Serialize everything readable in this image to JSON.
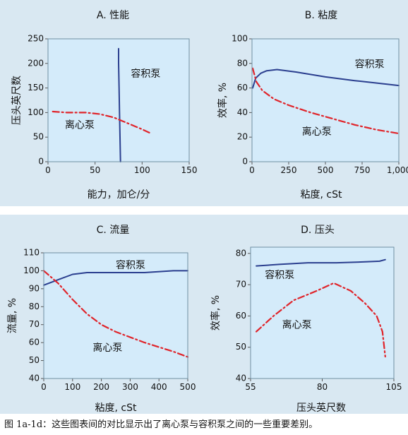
{
  "chart_data": [
    {
      "id": "A",
      "type": "line",
      "title": "A. 性能",
      "xlabel": "能力，加仑/分",
      "ylabel": "压头英尺数",
      "xlim": [
        0,
        150
      ],
      "ylim": [
        0,
        250
      ],
      "xticks": [
        0,
        50,
        100,
        150
      ],
      "yticks": [
        0,
        50,
        100,
        150,
        200,
        250
      ],
      "x_tick_labels": [
        "0",
        "50",
        "100",
        "150"
      ],
      "y_tick_labels": [
        "0",
        "50",
        "100",
        "150",
        "200",
        "250"
      ],
      "series": [
        {
          "name": "容积泵",
          "style": "solid",
          "color": "#2b3f8f",
          "points": [
            [
              77,
              0
            ],
            [
              76.5,
              50
            ],
            [
              76,
              100
            ],
            [
              75.5,
              150
            ],
            [
              75,
              200
            ],
            [
              75,
              230
            ]
          ],
          "label_at": [
            88,
            178
          ]
        },
        {
          "name": "离心泵",
          "style": "dashdot",
          "color": "#e0242a",
          "points": [
            [
              5,
              102
            ],
            [
              20,
              100
            ],
            [
              40,
              100
            ],
            [
              55,
              97
            ],
            [
              70,
              90
            ],
            [
              85,
              78
            ],
            [
              100,
              66
            ],
            [
              110,
              57
            ]
          ],
          "label_at": [
            18,
            74
          ]
        }
      ]
    },
    {
      "id": "B",
      "type": "line",
      "title": "B. 粘度",
      "xlabel": "粘度, cSt",
      "ylabel": "效率, %",
      "xlim": [
        0,
        1000
      ],
      "ylim": [
        0,
        100
      ],
      "xticks": [
        0,
        250,
        500,
        750,
        1000
      ],
      "yticks": [
        0,
        20,
        40,
        60,
        80,
        100
      ],
      "x_tick_labels": [
        "0",
        "250",
        "500",
        "750",
        "1,000"
      ],
      "y_tick_labels": [
        "0",
        "20",
        "40",
        "60",
        "80",
        "100"
      ],
      "series": [
        {
          "name": "容积泵",
          "style": "solid",
          "color": "#2b3f8f",
          "points": [
            [
              5,
              60
            ],
            [
              25,
              68
            ],
            [
              60,
              72
            ],
            [
              100,
              74
            ],
            [
              170,
              75
            ],
            [
              300,
              73
            ],
            [
              500,
              69
            ],
            [
              700,
              66
            ],
            [
              850,
              64
            ],
            [
              1000,
              62
            ]
          ],
          "label_at": [
            700,
            79
          ]
        },
        {
          "name": "离心泵",
          "style": "dashdot",
          "color": "#e0242a",
          "points": [
            [
              5,
              76
            ],
            [
              30,
              65
            ],
            [
              70,
              58
            ],
            [
              150,
              51
            ],
            [
              250,
              46
            ],
            [
              400,
              40
            ],
            [
              550,
              35
            ],
            [
              700,
              30
            ],
            [
              850,
              26
            ],
            [
              1000,
              23
            ]
          ],
          "label_at": [
            340,
            24
          ]
        }
      ]
    },
    {
      "id": "C",
      "type": "line",
      "title": "C. 流量",
      "xlabel": "粘度, cSt",
      "ylabel": "流量, %",
      "xlim": [
        0,
        500
      ],
      "ylim": [
        40,
        110
      ],
      "xticks": [
        0,
        100,
        200,
        300,
        400,
        500
      ],
      "yticks": [
        40,
        50,
        60,
        70,
        80,
        90,
        100,
        110
      ],
      "x_tick_labels": [
        "0",
        "100",
        "200",
        "300",
        "400",
        "500"
      ],
      "y_tick_labels": [
        "40",
        "50",
        "60",
        "70",
        "80",
        "90",
        "100",
        "110"
      ],
      "series": [
        {
          "name": "容积泵",
          "style": "solid",
          "color": "#2b3f8f",
          "points": [
            [
              0,
              92
            ],
            [
              50,
              95
            ],
            [
              100,
              98
            ],
            [
              150,
              99
            ],
            [
              250,
              99
            ],
            [
              350,
              99
            ],
            [
              450,
              100
            ],
            [
              500,
              100
            ]
          ],
          "label_at": [
            250,
            103
          ]
        },
        {
          "name": "离心泵",
          "style": "dashdot",
          "color": "#e0242a",
          "points": [
            [
              0,
              100
            ],
            [
              50,
              93
            ],
            [
              100,
              84
            ],
            [
              150,
              76
            ],
            [
              200,
              70
            ],
            [
              250,
              66
            ],
            [
              350,
              60
            ],
            [
              450,
              55
            ],
            [
              500,
              52
            ]
          ],
          "label_at": [
            170,
            57
          ]
        }
      ]
    },
    {
      "id": "D",
      "type": "line",
      "title": "D. 压头",
      "xlabel": "压头英尺数",
      "ylabel": "效率, %",
      "xlim": [
        55,
        105
      ],
      "ylim": [
        40,
        82
      ],
      "xticks": [
        55,
        80,
        105
      ],
      "yticks": [
        40,
        50,
        60,
        70,
        80
      ],
      "x_tick_labels": [
        "55",
        "80",
        "105"
      ],
      "y_tick_labels": [
        "40",
        "50",
        "60",
        "70",
        "80"
      ],
      "series": [
        {
          "name": "容积泵",
          "style": "solid",
          "color": "#2b3f8f",
          "points": [
            [
              57,
              76
            ],
            [
              65,
              76.5
            ],
            [
              75,
              77
            ],
            [
              85,
              77
            ],
            [
              95,
              77.3
            ],
            [
              100,
              77.5
            ],
            [
              102,
              78
            ]
          ],
          "label_at": [
            60,
            73
          ]
        },
        {
          "name": "离心泵",
          "style": "dashdot",
          "color": "#e0242a",
          "points": [
            [
              57,
              55
            ],
            [
              63,
              60
            ],
            [
              70,
              65
            ],
            [
              78,
              68
            ],
            [
              84,
              70.5
            ],
            [
              90,
              68
            ],
            [
              95,
              64
            ],
            [
              99,
              60
            ],
            [
              101,
              55
            ],
            [
              102,
              47
            ]
          ],
          "label_at": [
            66,
            57
          ]
        }
      ]
    }
  ],
  "caption": "图 1a-1d：这些图表间的对比显示出了离心泵与容积泵之间的一些重要差别。"
}
